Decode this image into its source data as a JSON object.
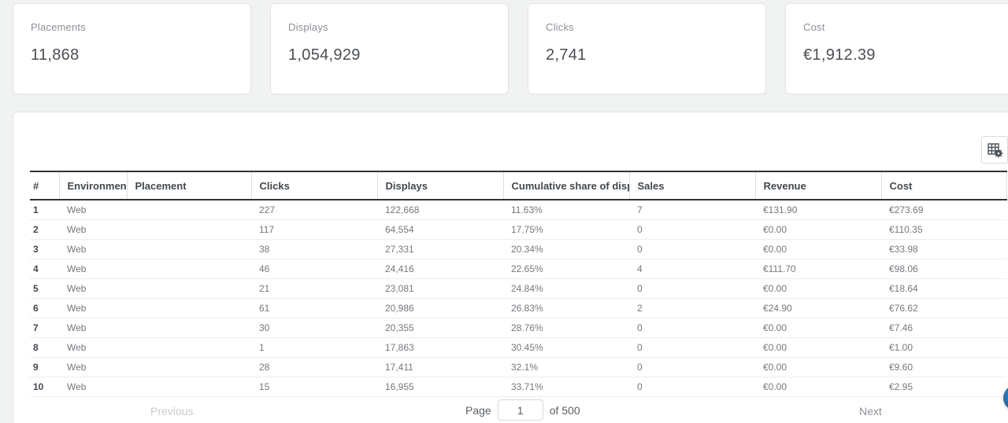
{
  "kpi_cards": [
    {
      "label": "Placements",
      "value": "11,868"
    },
    {
      "label": "Displays",
      "value": "1,054,929"
    },
    {
      "label": "Clicks",
      "value": "2,741"
    },
    {
      "label": "Cost",
      "value": "€1,912.39"
    }
  ],
  "table": {
    "settings_icon": "table-column-settings-icon",
    "columns": [
      "#",
      "Environment",
      "Placement",
      "Clicks",
      "Displays",
      "Cumulative share of displays",
      "Sales",
      "Revenue",
      "Cost"
    ],
    "rows": [
      {
        "index": "1",
        "environment": "Web",
        "placement": "",
        "clicks": "227",
        "displays": "122,668",
        "cumulative_share": "11.63%",
        "sales": "7",
        "revenue": "€131.90",
        "cost": "€273.69"
      },
      {
        "index": "2",
        "environment": "Web",
        "placement": "",
        "clicks": "117",
        "displays": "64,554",
        "cumulative_share": "17.75%",
        "sales": "0",
        "revenue": "€0.00",
        "cost": "€110.35"
      },
      {
        "index": "3",
        "environment": "Web",
        "placement": "",
        "clicks": "38",
        "displays": "27,331",
        "cumulative_share": "20.34%",
        "sales": "0",
        "revenue": "€0.00",
        "cost": "€33.98"
      },
      {
        "index": "4",
        "environment": "Web",
        "placement": "",
        "clicks": "46",
        "displays": "24,416",
        "cumulative_share": "22.65%",
        "sales": "4",
        "revenue": "€111.70",
        "cost": "€98.06"
      },
      {
        "index": "5",
        "environment": "Web",
        "placement": "",
        "clicks": "21",
        "displays": "23,081",
        "cumulative_share": "24.84%",
        "sales": "0",
        "revenue": "€0.00",
        "cost": "€18.64"
      },
      {
        "index": "6",
        "environment": "Web",
        "placement": "",
        "clicks": "61",
        "displays": "20,986",
        "cumulative_share": "26.83%",
        "sales": "2",
        "revenue": "€24.90",
        "cost": "€76.62"
      },
      {
        "index": "7",
        "environment": "Web",
        "placement": "",
        "clicks": "30",
        "displays": "20,355",
        "cumulative_share": "28.76%",
        "sales": "0",
        "revenue": "€0.00",
        "cost": "€7.46"
      },
      {
        "index": "8",
        "environment": "Web",
        "placement": "",
        "clicks": "1",
        "displays": "17,863",
        "cumulative_share": "30.45%",
        "sales": "0",
        "revenue": "€0.00",
        "cost": "€1.00"
      },
      {
        "index": "9",
        "environment": "Web",
        "placement": "",
        "clicks": "28",
        "displays": "17,411",
        "cumulative_share": "32.1%",
        "sales": "0",
        "revenue": "€0.00",
        "cost": "€9.60"
      },
      {
        "index": "10",
        "environment": "Web",
        "placement": "",
        "clicks": "15",
        "displays": "16,955",
        "cumulative_share": "33.71%",
        "sales": "0",
        "revenue": "€0.00",
        "cost": "€2.95"
      }
    ]
  },
  "pagination": {
    "previous_label": "Previous",
    "page_label": "Page",
    "page_value": "1",
    "of_label": "of 500",
    "next_label": "Next"
  },
  "colors": {
    "page_background": "#f1f2f2",
    "card_border": "#e3e5e6",
    "header_border": "#2f3337",
    "chat_bubble_blue": "#1b5e97"
  }
}
